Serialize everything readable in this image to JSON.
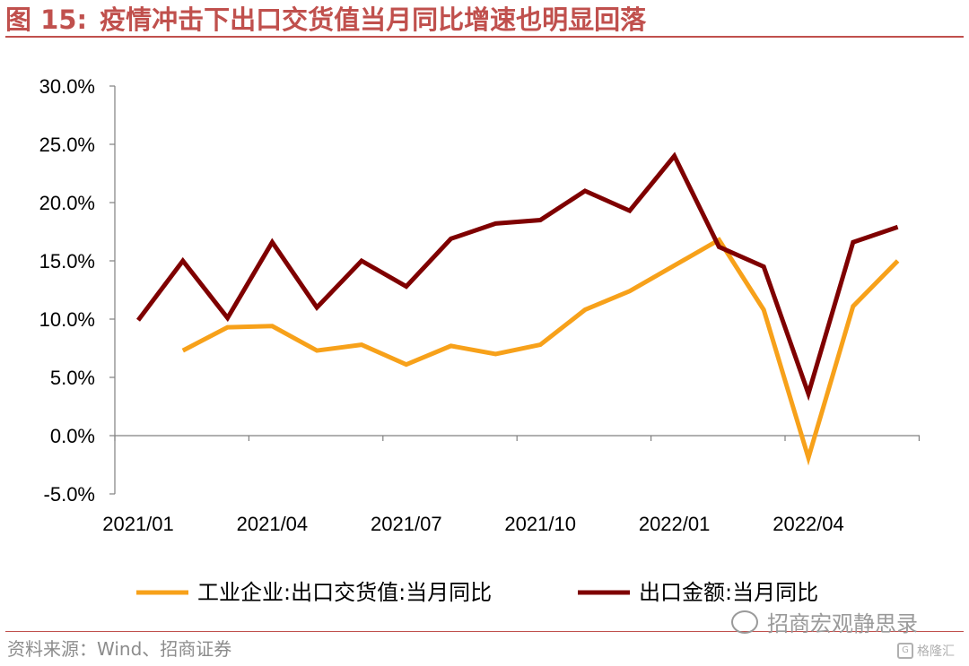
{
  "header": {
    "figure_number": "图 15:",
    "title": "疫情冲击下出口交货值当月同比增速也明显回落"
  },
  "chart_data": {
    "type": "line",
    "x": [
      "2021/01",
      "2021/02",
      "2021/03",
      "2021/04",
      "2021/05",
      "2021/06",
      "2021/07",
      "2021/08",
      "2021/09",
      "2021/10",
      "2021/11",
      "2021/12",
      "2022/01",
      "2022/02",
      "2022/03",
      "2022/04",
      "2022/05",
      "2022/06"
    ],
    "x_tick_labels": [
      "2021/01",
      "2021/04",
      "2021/07",
      "2021/10",
      "2022/01",
      "2022/04"
    ],
    "y_tick_labels": [
      "30.0%",
      "25.0%",
      "20.0%",
      "15.0%",
      "10.0%",
      "5.0%",
      "0.0%",
      "-5.0%"
    ],
    "ylim": [
      -5,
      30
    ],
    "series": [
      {
        "name": "工业企业:出口交货值:当月同比",
        "color": "#f7a11a",
        "values": [
          null,
          7.3,
          9.3,
          9.4,
          7.3,
          7.8,
          6.1,
          7.7,
          7.0,
          7.8,
          10.8,
          12.4,
          14.6,
          16.8,
          10.8,
          -1.9,
          11.1,
          15.0
        ]
      },
      {
        "name": "出口金额:当月同比",
        "color": "#7f0000",
        "values": [
          9.9,
          15.0,
          10.1,
          16.6,
          11.0,
          15.0,
          12.8,
          16.9,
          18.2,
          18.5,
          21.0,
          19.3,
          24.0,
          16.2,
          14.5,
          3.6,
          16.6,
          17.9
        ]
      }
    ],
    "grid": false,
    "legend_position": "bottom"
  },
  "footer": {
    "source": "资料来源：Wind、招商证券",
    "watermark": "招商宏观静思录",
    "brand": "格隆汇"
  }
}
